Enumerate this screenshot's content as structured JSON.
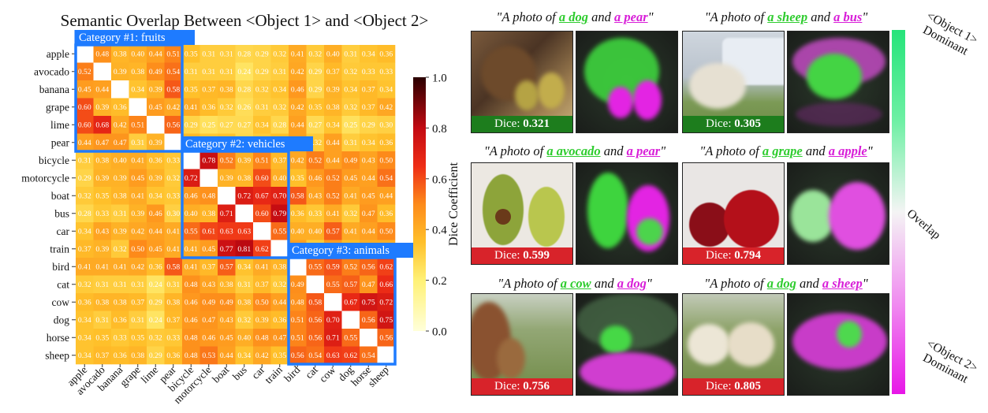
{
  "figure_title": "Semantic Overlap Between <Object 1> and <Object 2>",
  "chart_data": {
    "type": "heatmap",
    "title": "Semantic Overlap Between <Object 1> and <Object 2>",
    "labels": [
      "apple",
      "avocado",
      "banana",
      "grape",
      "lime",
      "pear",
      "bicycle",
      "motorcycle",
      "boat",
      "bus",
      "car",
      "train",
      "bird",
      "cat",
      "cow",
      "dog",
      "horse",
      "sheep"
    ],
    "matrix": [
      [
        null,
        0.48,
        0.38,
        0.4,
        0.44,
        0.51,
        0.35,
        0.31,
        0.31,
        0.28,
        0.29,
        0.32,
        0.41,
        0.32,
        0.4,
        0.31,
        0.34,
        0.36
      ],
      [
        0.52,
        null,
        0.39,
        0.38,
        0.49,
        0.54,
        0.31,
        0.31,
        0.31,
        0.24,
        0.29,
        0.31,
        0.42,
        0.29,
        0.37,
        0.32,
        0.33,
        0.33
      ],
      [
        0.45,
        0.44,
        null,
        0.34,
        0.39,
        0.58,
        0.35,
        0.37,
        0.38,
        0.28,
        0.32,
        0.34,
        0.46,
        0.29,
        0.39,
        0.34,
        0.37,
        0.34
      ],
      [
        0.6,
        0.39,
        0.36,
        null,
        0.45,
        0.42,
        0.41,
        0.36,
        0.32,
        0.26,
        0.31,
        0.32,
        0.42,
        0.35,
        0.38,
        0.32,
        0.37,
        0.42
      ],
      [
        0.6,
        0.68,
        0.42,
        0.51,
        null,
        0.56,
        0.29,
        0.25,
        0.27,
        0.27,
        0.34,
        0.28,
        0.44,
        0.27,
        0.34,
        0.25,
        0.29,
        0.3
      ],
      [
        0.44,
        0.47,
        0.47,
        0.31,
        0.39,
        null,
        0.37,
        0.33,
        0.34,
        0.28,
        0.32,
        0.35,
        0.44,
        0.32,
        0.44,
        0.31,
        0.34,
        0.36
      ],
      [
        0.31,
        0.38,
        0.4,
        0.41,
        0.36,
        0.33,
        null,
        0.78,
        0.52,
        0.39,
        0.51,
        0.37,
        0.42,
        0.52,
        0.44,
        0.49,
        0.43,
        0.5
      ],
      [
        0.29,
        0.39,
        0.39,
        0.45,
        0.39,
        0.32,
        0.72,
        null,
        0.39,
        0.38,
        0.6,
        0.4,
        0.35,
        0.46,
        0.52,
        0.45,
        0.44,
        0.54
      ],
      [
        0.32,
        0.35,
        0.38,
        0.41,
        0.34,
        0.33,
        0.46,
        0.48,
        null,
        0.72,
        0.67,
        0.7,
        0.58,
        0.43,
        0.52,
        0.41,
        0.45,
        0.44
      ],
      [
        0.28,
        0.33,
        0.31,
        0.39,
        0.46,
        0.3,
        0.4,
        0.38,
        0.71,
        null,
        0.6,
        0.79,
        0.36,
        0.33,
        0.41,
        0.32,
        0.47,
        0.36
      ],
      [
        0.34,
        0.43,
        0.39,
        0.42,
        0.44,
        0.41,
        0.55,
        0.61,
        0.63,
        0.63,
        null,
        0.55,
        0.4,
        0.4,
        0.57,
        0.41,
        0.44,
        0.5
      ],
      [
        0.37,
        0.39,
        0.32,
        0.5,
        0.45,
        0.41,
        0.41,
        0.45,
        0.77,
        0.81,
        0.62,
        null,
        0.44,
        0.32,
        0.45,
        0.36,
        0.4,
        0.4
      ],
      [
        0.41,
        0.41,
        0.41,
        0.42,
        0.36,
        0.58,
        0.41,
        0.37,
        0.57,
        0.34,
        0.41,
        0.38,
        null,
        0.55,
        0.59,
        0.52,
        0.56,
        0.62
      ],
      [
        0.32,
        0.31,
        0.31,
        0.31,
        0.24,
        0.31,
        0.48,
        0.43,
        0.38,
        0.31,
        0.37,
        0.32,
        0.49,
        null,
        0.55,
        0.57,
        0.47,
        0.66
      ],
      [
        0.36,
        0.38,
        0.38,
        0.37,
        0.29,
        0.38,
        0.46,
        0.49,
        0.49,
        0.38,
        0.5,
        0.44,
        0.48,
        0.58,
        null,
        0.67,
        0.75,
        0.72
      ],
      [
        0.34,
        0.31,
        0.36,
        0.31,
        0.24,
        0.37,
        0.46,
        0.47,
        0.43,
        0.32,
        0.39,
        0.36,
        0.51,
        0.56,
        0.7,
        null,
        0.56,
        0.75
      ],
      [
        0.34,
        0.35,
        0.33,
        0.35,
        0.32,
        0.33,
        0.48,
        0.46,
        0.45,
        0.4,
        0.48,
        0.47,
        0.51,
        0.56,
        0.71,
        0.55,
        null,
        0.56
      ],
      [
        0.34,
        0.37,
        0.36,
        0.38,
        0.29,
        0.36,
        0.48,
        0.53,
        0.44,
        0.34,
        0.42,
        0.35,
        0.56,
        0.54,
        0.63,
        0.62,
        0.54,
        null
      ]
    ],
    "colorbar": {
      "label": "Dice Coefficient",
      "ticks": [
        "0.0",
        "0.2",
        "0.4",
        "0.6",
        "0.8",
        "1.0"
      ],
      "range": [
        0,
        1
      ]
    },
    "categories": [
      {
        "label": "Category #1: fruits",
        "from": 0,
        "to": 5
      },
      {
        "label": "Category #2: vehicles",
        "from": 6,
        "to": 11
      },
      {
        "label": "Category #3: animals",
        "from": 12,
        "to": 17
      }
    ],
    "colors": {
      "category_box": "#1e7bff",
      "diagonal": "#ffffff"
    }
  },
  "examples": [
    {
      "prefix": "\"A photo of ",
      "obj1": "a dog",
      "mid": " and ",
      "obj2": "a pear",
      "suffix": "\"",
      "dice_label": "Dice: ",
      "dice_value": "0.321",
      "bar": "green"
    },
    {
      "prefix": "\"A photo of ",
      "obj1": "a sheep",
      "mid": " and ",
      "obj2": "a bus",
      "suffix": "\"",
      "dice_label": "Dice: ",
      "dice_value": "0.305",
      "bar": "green"
    },
    {
      "prefix": "\"A photo of ",
      "obj1": "a avocado",
      "mid": " and ",
      "obj2": "a pear",
      "suffix": "\"",
      "dice_label": "Dice: ",
      "dice_value": "0.599",
      "bar": "red"
    },
    {
      "prefix": "\"A photo of ",
      "obj1": "a grape",
      "mid": " and ",
      "obj2": "a apple",
      "suffix": "\"",
      "dice_label": "Dice: ",
      "dice_value": "0.794",
      "bar": "red"
    },
    {
      "prefix": "\"A photo of ",
      "obj1": "a cow",
      "mid": " and ",
      "obj2": "a dog",
      "suffix": "\"",
      "dice_label": "Dice: ",
      "dice_value": "0.756",
      "bar": "red"
    },
    {
      "prefix": "\"A photo of ",
      "obj1": "a dog",
      "mid": " and ",
      "obj2": "a sheep",
      "suffix": "\"",
      "dice_label": "Dice: ",
      "dice_value": "0.805",
      "bar": "red"
    }
  ],
  "overlap_bar": {
    "top_label": "<Object 1> Dominant",
    "middle_label": "Overlap",
    "bottom_label": "<Object 2> Dominant",
    "colors": {
      "top": "#26e47a",
      "middle": "#f4f4f4",
      "bottom": "#e716e7"
    }
  }
}
